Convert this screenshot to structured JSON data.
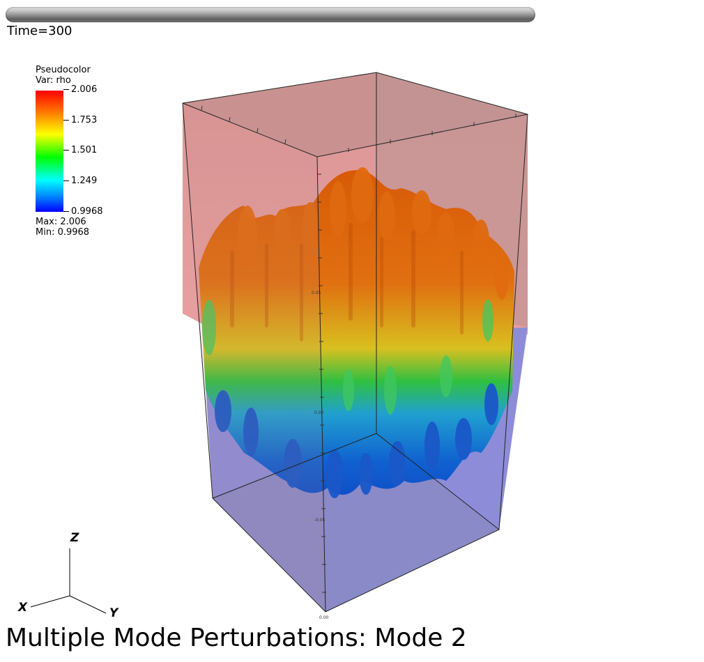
{
  "time_label": "Time=300",
  "legend": {
    "title": "Pseudocolor",
    "var": "Var: rho",
    "ticks": [
      "2.006",
      "1.753",
      "1.501",
      "1.249",
      "0.9968"
    ],
    "max_label": "Max:  2.006",
    "min_label": "Min:  0.9968"
  },
  "axes": {
    "z": "Z",
    "x": "X",
    "y": "Y"
  },
  "box_tick_labels": [
    "0.05",
    "0.00",
    "-0.05",
    "0.00"
  ],
  "caption": "Multiple Mode Perturbations: Mode 2",
  "colors": {
    "heavy_fluid": "#e08a8a",
    "light_fluid": "#8a8ad8",
    "fingers_top": "#e06a10",
    "fingers_bottom": "#1060d0"
  }
}
